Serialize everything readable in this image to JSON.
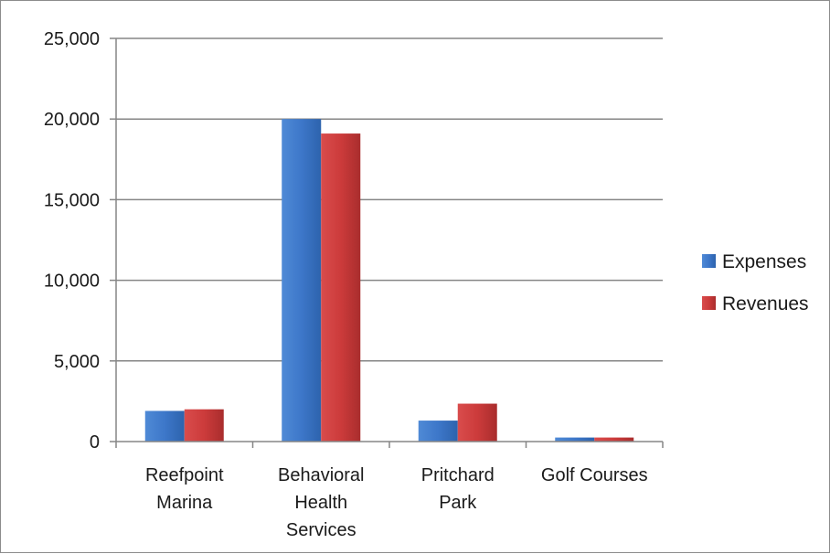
{
  "chart_data": {
    "type": "bar",
    "title": "",
    "xlabel": "",
    "ylabel": "",
    "categories": [
      [
        "Reefpoint",
        "Marina"
      ],
      [
        "Behavioral",
        "Health",
        "Services"
      ],
      [
        "Pritchard",
        "Park"
      ],
      [
        "Golf Courses"
      ]
    ],
    "series": [
      {
        "name": "Expenses",
        "values": [
          1900,
          20000,
          1300,
          250
        ],
        "color": "#3d77c9"
      },
      {
        "name": "Revenues",
        "values": [
          2000,
          19100,
          2350,
          250
        ],
        "color": "#cc3b3b"
      }
    ],
    "ylim": [
      0,
      25000
    ],
    "yticks": [
      0,
      5000,
      10000,
      15000,
      20000,
      25000
    ],
    "ytick_labels": [
      "0",
      "5,000",
      "10,000",
      "15,000",
      "20,000",
      "25,000"
    ],
    "grid": true,
    "legend": "right"
  }
}
